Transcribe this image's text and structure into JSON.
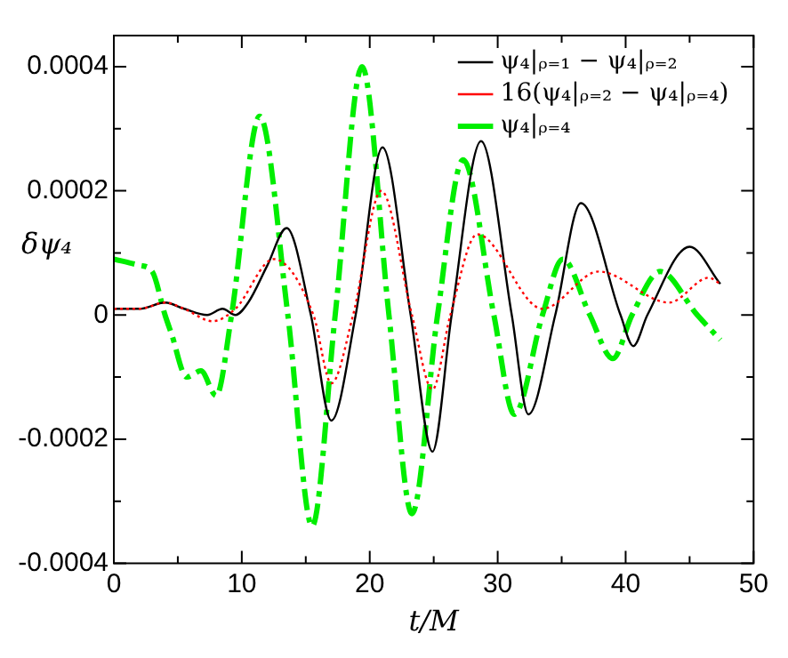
{
  "chart_data": {
    "type": "line",
    "xlabel": "t/M",
    "ylabel": "δψ₄",
    "xlim": [
      0,
      50
    ],
    "xticks": [
      0,
      {
        "value": 5,
        "label": null
      },
      10,
      {
        "value": 15,
        "label": null
      },
      20,
      {
        "value": 25,
        "label": null
      },
      30,
      {
        "value": 35,
        "label": null
      },
      40,
      {
        "value": 45,
        "label": null
      },
      50
    ],
    "ylim": [
      -0.0004,
      0.00045
    ],
    "yticks": [
      -0.0004,
      {
        "value": -0.0003,
        "label": null
      },
      -0.0002,
      {
        "value": -0.0001,
        "label": null
      },
      0,
      {
        "value": 0.0001,
        "label": null
      },
      0.0002,
      {
        "value": 0.0003,
        "label": null
      },
      0.0004
    ],
    "grid": false,
    "legend": "top right",
    "marker": "none",
    "series": [
      {
        "name": "ψ₄|ᵨ₌₁ − ψ₄|ᵨ₌₂",
        "color": "#000000",
        "line_style": "solid",
        "x": [
          0,
          2,
          4,
          5.5,
          7.3,
          8.5,
          9.5,
          10.5,
          12,
          13.5,
          15.4,
          17,
          18.9,
          21,
          23.2,
          24.9,
          26.4,
          28.7,
          31.1,
          32.4,
          34.5,
          36.5,
          39.6,
          40.6,
          41.7,
          45,
          47.4
        ],
        "values": [
          1e-05,
          1e-05,
          2e-05,
          1e-05,
          0,
          1e-05,
          0,
          2e-05,
          8e-05,
          0.00014,
          0,
          -0.00017,
          0,
          0.00027,
          0,
          -0.00022,
          0,
          0.00028,
          0,
          -0.00016,
          0,
          0.00018,
          0,
          -5e-05,
          0,
          0.00011,
          5e-05
        ]
      },
      {
        "name": "16(ψ₄|ᵨ₌₂ − ψ₄|ᵨ₌₄)",
        "color": "#ff0000",
        "line_style": "dotted",
        "x": [
          0,
          2,
          4,
          5.5,
          7.7,
          9.5,
          12.5,
          15.6,
          17,
          18.7,
          20.9,
          23.3,
          24.9,
          26.3,
          28.4,
          33.5,
          37.9,
          43.4,
          46.5,
          47.4
        ],
        "values": [
          1e-05,
          1e-05,
          2e-05,
          1e-05,
          -1e-05,
          1e-05,
          9e-05,
          0,
          -0.00011,
          0,
          0.0002,
          0,
          -0.00012,
          0,
          0.00013,
          1e-05,
          7e-05,
          2e-05,
          6e-05,
          5e-05
        ]
      },
      {
        "name": "ψ₄|ᵨ₌₄",
        "color": "#00ee00",
        "line_style": "dashed",
        "x": [
          0,
          2,
          3,
          4,
          4.5,
          5.7,
          6.8,
          8,
          9.2,
          11.4,
          13.6,
          15.5,
          17.3,
          19.4,
          21.5,
          23.3,
          25.3,
          27.3,
          29.7,
          31.3,
          33.5,
          35.1,
          37.2,
          39,
          40.5,
          42.7,
          45.6,
          47.4
        ],
        "values": [
          9e-05,
          8e-05,
          7e-05,
          0,
          -3e-05,
          -0.0001,
          -9e-05,
          -0.00013,
          0,
          0.00032,
          0,
          -0.00034,
          0,
          0.0004,
          0,
          -0.00032,
          0,
          0.00025,
          0,
          -0.00016,
          0,
          9e-05,
          0,
          -7e-05,
          0,
          7e-05,
          0,
          -4e-05
        ]
      }
    ]
  }
}
